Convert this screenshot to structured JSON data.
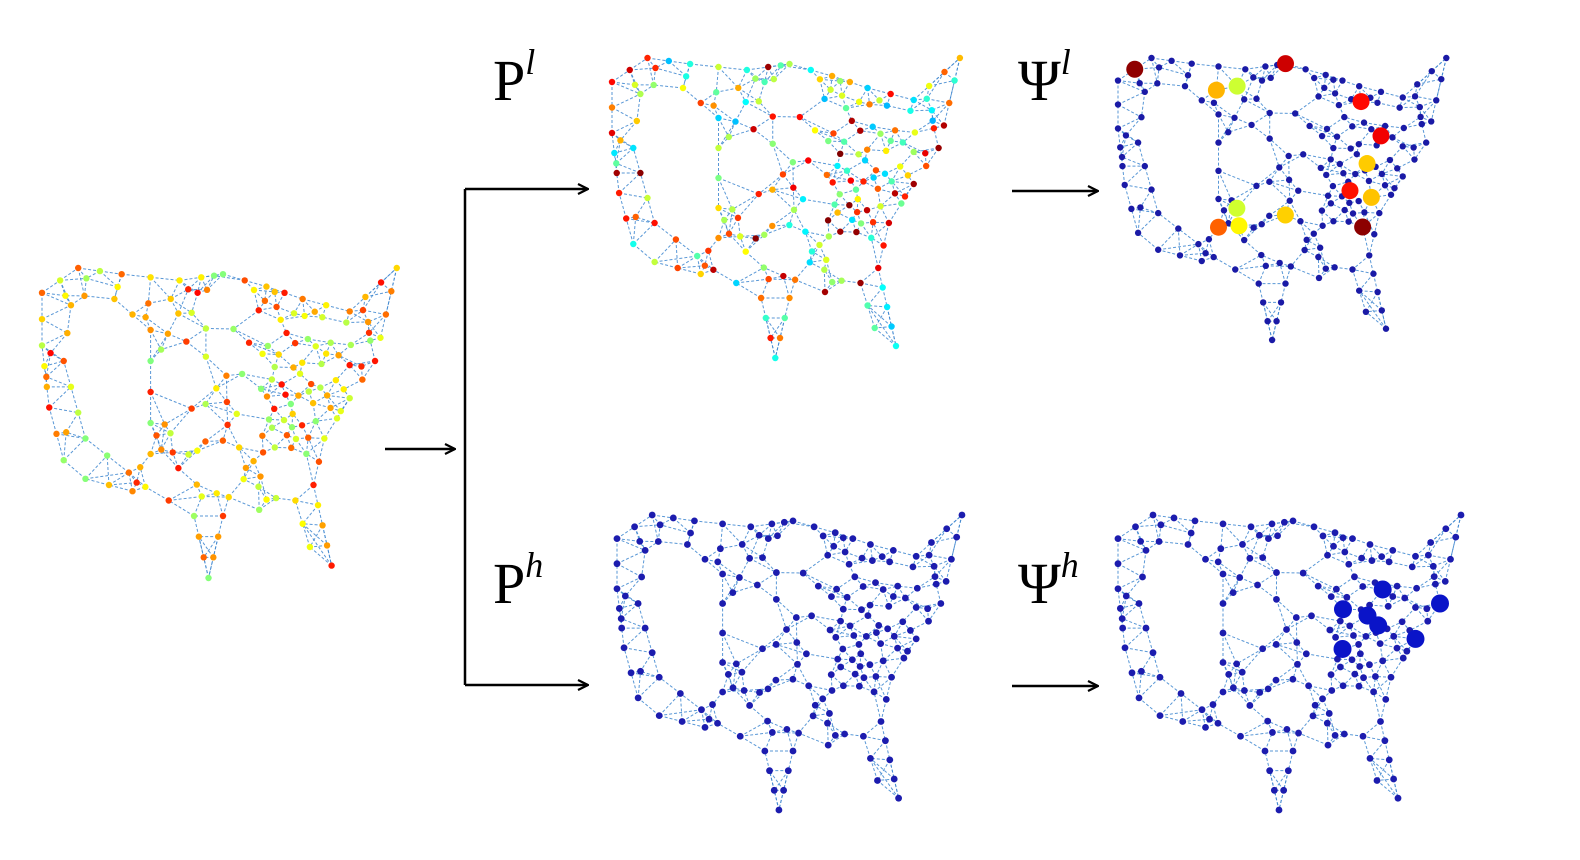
{
  "labels": [
    {
      "base": "P",
      "sup": "l"
    },
    {
      "base": "Ψ",
      "sup": "l"
    },
    {
      "base": "P",
      "sup": "h"
    },
    {
      "base": "Ψ",
      "sup": "h"
    }
  ]
}
